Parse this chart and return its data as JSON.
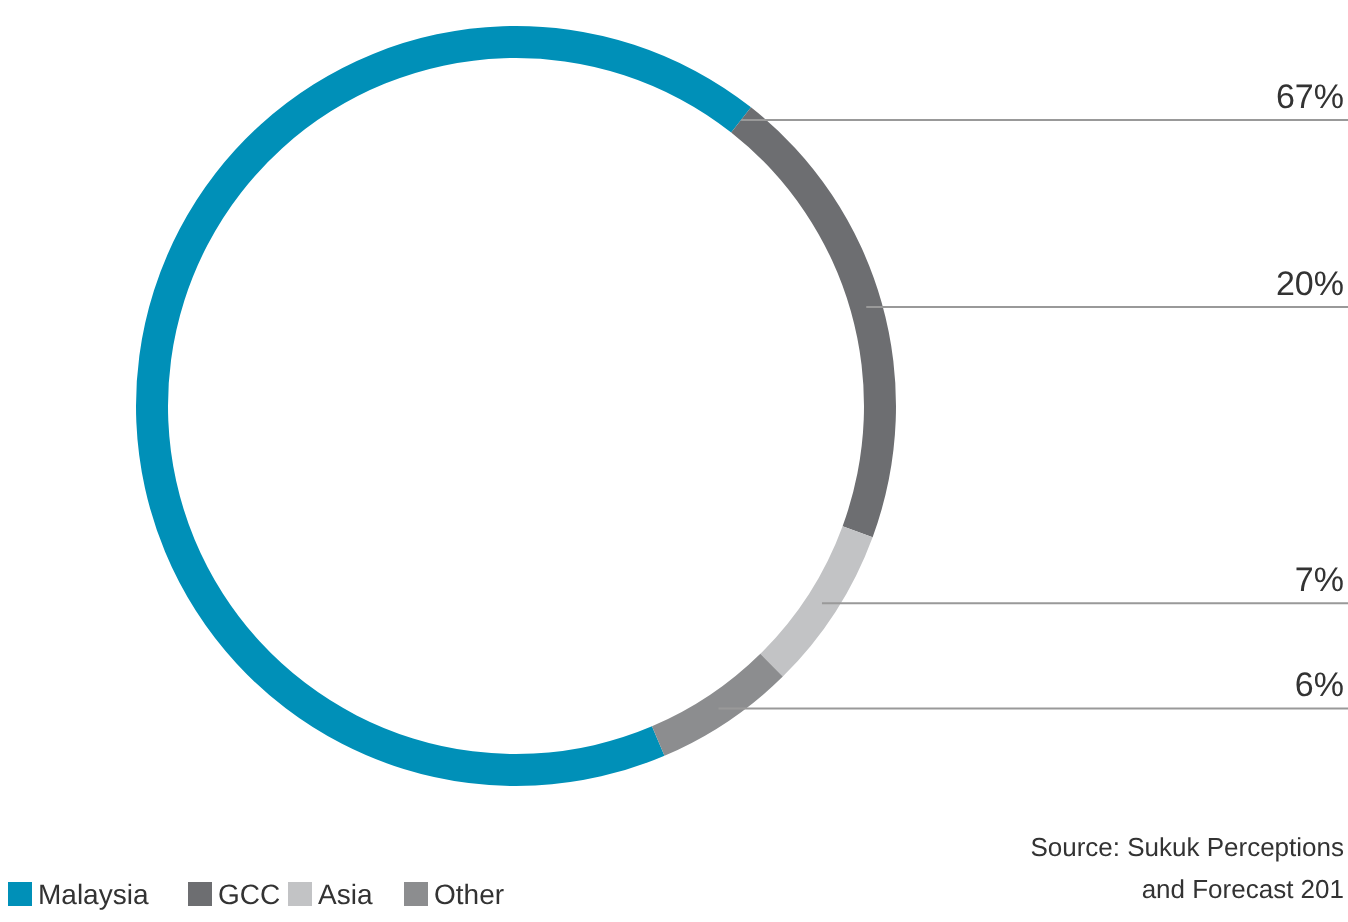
{
  "chart_data": {
    "type": "donut",
    "categories": [
      "Malaysia",
      "GCC",
      "Asia",
      "Other"
    ],
    "values": [
      67,
      20,
      7,
      6
    ],
    "colors": [
      "#0090b8",
      "#6d6e71",
      "#c2c3c5",
      "#8c8d8f"
    ],
    "value_labels": [
      "67%",
      "20%",
      "7%",
      "6%"
    ],
    "legend": "bottom left",
    "annotations": [
      "Source: Sukuk Perceptions and Forecast 201"
    ]
  }
}
